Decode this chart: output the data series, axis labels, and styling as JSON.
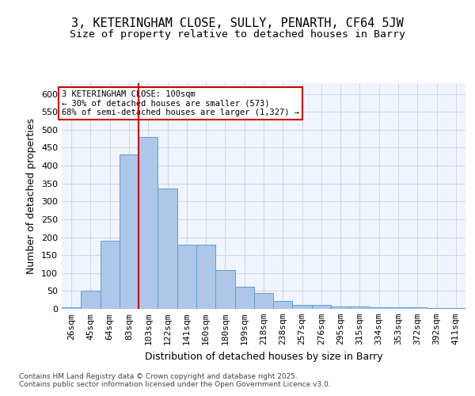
{
  "title1": "3, KETERINGHAM CLOSE, SULLY, PENARTH, CF64 5JW",
  "title2": "Size of property relative to detached houses in Barry",
  "xlabel": "Distribution of detached houses by size in Barry",
  "ylabel": "Number of detached properties",
  "bar_values": [
    5,
    50,
    190,
    430,
    480,
    335,
    178,
    178,
    108,
    62,
    44,
    23,
    10,
    10,
    7,
    7,
    4,
    4,
    5,
    3,
    3
  ],
  "categories": [
    "26sqm",
    "45sqm",
    "64sqm",
    "83sqm",
    "103sqm",
    "122sqm",
    "141sqm",
    "160sqm",
    "180sqm",
    "199sqm",
    "218sqm",
    "238sqm",
    "257sqm",
    "276sqm",
    "295sqm",
    "315sqm",
    "334sqm",
    "353sqm",
    "372sqm",
    "392sqm",
    "411sqm"
  ],
  "bar_color": "#aec6e8",
  "bar_edge_color": "#5a9fd4",
  "grid_color": "#d0d8e8",
  "background_color": "#f0f4fc",
  "vline_x_index": 4,
  "vline_color": "#cc0000",
  "annotation_text": "3 KETERINGHAM CLOSE: 100sqm\n← 30% of detached houses are smaller (573)\n68% of semi-detached houses are larger (1,327) →",
  "annotation_box_color": "#cc0000",
  "ylim": [
    0,
    630
  ],
  "yticks": [
    0,
    50,
    100,
    150,
    200,
    250,
    300,
    350,
    400,
    450,
    500,
    550,
    600
  ],
  "footer": "Contains HM Land Registry data © Crown copyright and database right 2025.\nContains public sector information licensed under the Open Government Licence v3.0.",
  "title_fontsize": 11,
  "subtitle_fontsize": 9.5,
  "axis_label_fontsize": 9,
  "tick_fontsize": 8,
  "footer_fontsize": 6.5
}
